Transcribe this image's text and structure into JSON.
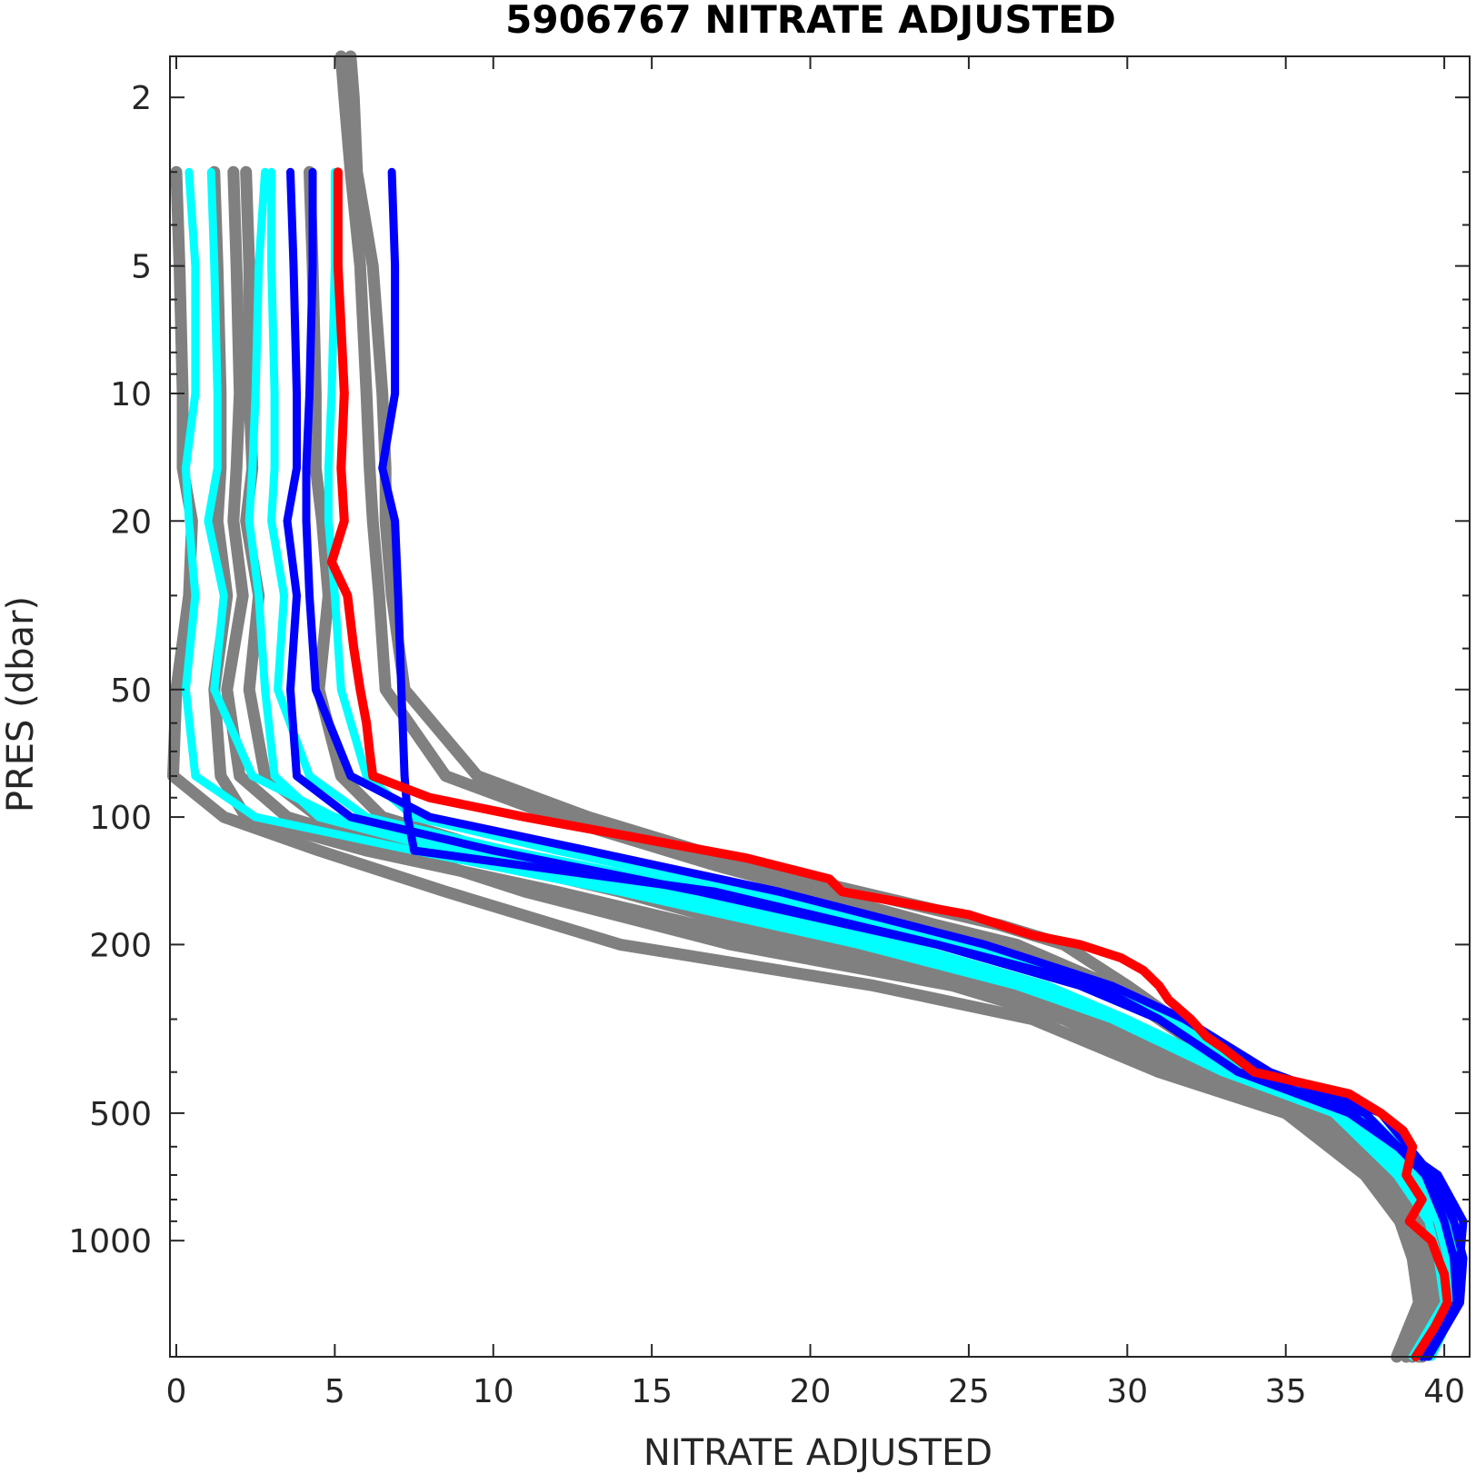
{
  "chart_data": {
    "type": "line",
    "title": "5906767  NITRATE ADJUSTED",
    "xlabel": "NITRATE ADJUSTED",
    "ylabel": "PRES (dbar)",
    "xlim": [
      -0.2,
      40.8
    ],
    "ylim": [
      1.6,
      1880
    ],
    "y_scale": "log",
    "y_reversed": true,
    "xticks": [
      0,
      5,
      10,
      15,
      20,
      25,
      30,
      35,
      40
    ],
    "yticks": [
      2,
      5,
      10,
      20,
      50,
      100,
      200,
      500,
      1000
    ],
    "grid": false,
    "legend": "none",
    "colors": {
      "historical": "#808080",
      "recent": "#00ffff",
      "previous": "#0000ff",
      "latest": "#ff0000"
    },
    "series": [
      {
        "group": "historical",
        "pres": [
          1.6,
          2,
          3,
          5,
          10,
          15,
          20,
          30,
          50,
          80,
          100,
          130,
          180,
          200,
          250,
          300,
          400,
          500,
          700,
          900,
          1100,
          1400,
          1880
        ],
        "nitrate": [
          5.5,
          5.6,
          5.7,
          6.2,
          6.5,
          6.6,
          6.6,
          6.8,
          7.2,
          9.5,
          13,
          18,
          26,
          28,
          30,
          31.5,
          34,
          36.5,
          38.5,
          39.5,
          39.8,
          39.7,
          39.2
        ]
      },
      {
        "group": "historical",
        "pres": [
          1.6,
          2,
          3,
          5,
          10,
          15,
          20,
          30,
          50,
          80,
          100,
          130,
          180,
          200,
          250,
          300,
          400,
          500,
          700,
          900,
          1100,
          1400,
          1880
        ],
        "nitrate": [
          5.2,
          5.3,
          5.5,
          5.8,
          6.0,
          6.1,
          6.2,
          6.4,
          6.6,
          8.5,
          12,
          17,
          24,
          26.5,
          29.5,
          31,
          33.5,
          36,
          38,
          39.2,
          39.6,
          39.5,
          39.0
        ]
      },
      {
        "group": "historical",
        "pres": [
          3,
          5,
          10,
          15,
          20,
          30,
          50,
          80,
          100,
          120,
          150,
          200,
          250,
          300,
          400,
          500,
          700,
          900,
          1100,
          1400,
          1880
        ],
        "nitrate": [
          0.0,
          0.1,
          0.2,
          0.2,
          0.5,
          0.4,
          0.0,
          -0.1,
          1.5,
          4.5,
          8.5,
          14,
          22,
          27,
          31,
          35,
          37.5,
          38.6,
          39.0,
          39.2,
          38.5
        ]
      },
      {
        "group": "historical",
        "pres": [
          3,
          5,
          10,
          15,
          20,
          30,
          50,
          80,
          100,
          120,
          150,
          200,
          250,
          300,
          400,
          500,
          700,
          900,
          1100,
          1400,
          1880
        ],
        "nitrate": [
          1.2,
          1.3,
          1.4,
          1.4,
          1.3,
          1.6,
          1.2,
          1.4,
          2.2,
          6.0,
          12,
          19,
          25.5,
          28.5,
          32,
          35.5,
          37.8,
          38.9,
          39.3,
          39.5,
          38.8
        ]
      },
      {
        "group": "historical",
        "pres": [
          3,
          5,
          10,
          15,
          20,
          30,
          50,
          80,
          100,
          120,
          150,
          200,
          250,
          300,
          400,
          500,
          700,
          900,
          1100,
          1400,
          1880
        ],
        "nitrate": [
          2.2,
          2.3,
          2.3,
          2.4,
          2.2,
          2.6,
          2.3,
          2.8,
          4.5,
          8.5,
          14,
          20,
          26,
          29.5,
          32.5,
          36,
          38.2,
          39.4,
          39.7,
          39.8,
          39.0
        ]
      },
      {
        "group": "historical",
        "pres": [
          3,
          5,
          10,
          15,
          20,
          30,
          50,
          80,
          100,
          120,
          150,
          200,
          250,
          300,
          400,
          500,
          700,
          900,
          1100,
          1400,
          1880
        ],
        "nitrate": [
          4.2,
          4.3,
          4.4,
          4.4,
          4.6,
          4.8,
          4.5,
          5.2,
          6.5,
          10,
          15.5,
          21,
          26.5,
          29,
          32.5,
          36.2,
          38.6,
          39.6,
          40.0,
          40.1,
          39.3
        ]
      },
      {
        "group": "historical",
        "pres": [
          3,
          5,
          10,
          15,
          20,
          30,
          50,
          80,
          100,
          120,
          150,
          200,
          250,
          300,
          400,
          500,
          700,
          900,
          1100,
          1400,
          1880
        ],
        "nitrate": [
          1.8,
          1.9,
          2.0,
          1.9,
          1.8,
          2.1,
          1.6,
          2.0,
          3.5,
          7.0,
          11,
          17.5,
          24.5,
          28,
          31.5,
          35.3,
          37.6,
          39.0,
          39.4,
          39.5,
          38.8
        ]
      },
      {
        "group": "recent",
        "pres": [
          3,
          5,
          10,
          15,
          20,
          30,
          50,
          80,
          100,
          120,
          150,
          200,
          250,
          300,
          400,
          500,
          700,
          900,
          1100,
          1400,
          1880
        ],
        "nitrate": [
          0.4,
          0.6,
          0.6,
          0.3,
          0.4,
          0.6,
          0.3,
          0.6,
          2.5,
          7.5,
          14,
          21.5,
          26.5,
          29.5,
          33,
          36.5,
          38.5,
          39.5,
          39.8,
          40.0,
          39.0
        ]
      },
      {
        "group": "recent",
        "pres": [
          3,
          5,
          10,
          15,
          20,
          30,
          50,
          80,
          100,
          120,
          150,
          200,
          250,
          300,
          400,
          500,
          700,
          900,
          1100,
          1400,
          1880
        ],
        "nitrate": [
          1.1,
          1.2,
          1.3,
          1.3,
          1.0,
          1.5,
          1.2,
          2.4,
          5.0,
          9.5,
          16,
          23,
          27.5,
          30,
          33.5,
          37,
          39.0,
          40.2,
          40.4,
          40.2,
          39.2
        ]
      },
      {
        "group": "recent",
        "pres": [
          3,
          5,
          10,
          15,
          20,
          30,
          50,
          80,
          100,
          120,
          150,
          200,
          250,
          300,
          400,
          500,
          700,
          900,
          1100,
          1400,
          1880
        ],
        "nitrate": [
          2.8,
          2.6,
          2.5,
          2.4,
          2.3,
          2.6,
          2.8,
          3.1,
          4.5,
          8.5,
          15,
          22.5,
          27,
          29.5,
          33,
          36.8,
          38.8,
          39.8,
          40.1,
          40.3,
          39.5
        ]
      },
      {
        "group": "recent",
        "pres": [
          3,
          5,
          10,
          15,
          20,
          30,
          50,
          80,
          100,
          120,
          150,
          200,
          250,
          300,
          400,
          500,
          700,
          900,
          1100,
          1400,
          1880
        ],
        "nitrate": [
          3.0,
          3.0,
          3.1,
          3.1,
          3.0,
          3.4,
          3.2,
          4.2,
          6.0,
          10.5,
          17,
          24,
          28.5,
          31,
          33.8,
          37.2,
          39.3,
          40.0,
          40.3,
          40.4,
          39.6
        ]
      },
      {
        "group": "recent",
        "pres": [
          3,
          5,
          10,
          15,
          20,
          30,
          50,
          80,
          100,
          120,
          150,
          200,
          250,
          300,
          400,
          500,
          700,
          900,
          1100,
          1400,
          1880
        ],
        "nitrate": [
          5.0,
          5.0,
          4.9,
          4.8,
          4.8,
          5.0,
          5.2,
          6.0,
          7.5,
          12,
          18,
          25,
          29,
          31.5,
          34,
          37.5,
          39.5,
          40.2,
          40.5,
          40.3,
          39.5
        ]
      },
      {
        "group": "previous",
        "pres": [
          3,
          5,
          10,
          15,
          20,
          30,
          50,
          80,
          100,
          120,
          150,
          200,
          250,
          300,
          400,
          500,
          700,
          900,
          1100,
          1400,
          1880
        ],
        "nitrate": [
          3.6,
          3.7,
          3.8,
          3.8,
          3.5,
          3.8,
          3.6,
          3.8,
          5.5,
          10,
          16.5,
          24,
          28.5,
          31,
          33.5,
          37.5,
          39.4,
          40.0,
          40.3,
          40.4,
          39.4
        ]
      },
      {
        "group": "previous",
        "pres": [
          3,
          5,
          10,
          15,
          20,
          30,
          50,
          80,
          100,
          120,
          150,
          200,
          250,
          300,
          400,
          500,
          700,
          900,
          1100,
          1400,
          1880
        ],
        "nitrate": [
          4.3,
          4.3,
          4.2,
          4.1,
          4.1,
          4.2,
          4.4,
          5.5,
          8.0,
          13,
          19,
          25.5,
          29.5,
          31.8,
          34.5,
          38,
          39.6,
          40.3,
          40.6,
          40.5,
          39.5
        ]
      },
      {
        "group": "previous",
        "pres": [
          3,
          5,
          10,
          15,
          20,
          30,
          50,
          80,
          100,
          120,
          150,
          200,
          250,
          300,
          400,
          500,
          700,
          900,
          1100,
          1400,
          1880
        ],
        "nitrate": [
          6.8,
          6.9,
          6.9,
          6.5,
          6.9,
          7.0,
          7.1,
          7.2,
          7.3,
          7.5,
          17,
          24,
          29,
          31,
          33.5,
          37,
          39.8,
          40.6,
          40.5,
          40.4,
          39.3
        ]
      },
      {
        "group": "latest",
        "pres": [
          3,
          5,
          7,
          10,
          15,
          20,
          25,
          30,
          40,
          50,
          60,
          70,
          80,
          90,
          100,
          110,
          125,
          140,
          150,
          170,
          190,
          200,
          215,
          230,
          250,
          270,
          300,
          330,
          350,
          400,
          450,
          500,
          550,
          600,
          700,
          800,
          900,
          1000,
          1100,
          1200,
          1400,
          1600,
          1880
        ],
        "nitrate": [
          5.1,
          5.1,
          5.2,
          5.3,
          5.2,
          5.3,
          4.9,
          5.4,
          5.6,
          5.8,
          6.0,
          6.1,
          6.2,
          8.0,
          11,
          14,
          18,
          20.6,
          21,
          25,
          27,
          28.5,
          29.8,
          30.5,
          31,
          31.3,
          32,
          32.5,
          33,
          34,
          37,
          38,
          38.7,
          39,
          38.8,
          39.3,
          38.9,
          39.6,
          39.8,
          40.0,
          40.1,
          39.7,
          39.1
        ]
      }
    ]
  }
}
